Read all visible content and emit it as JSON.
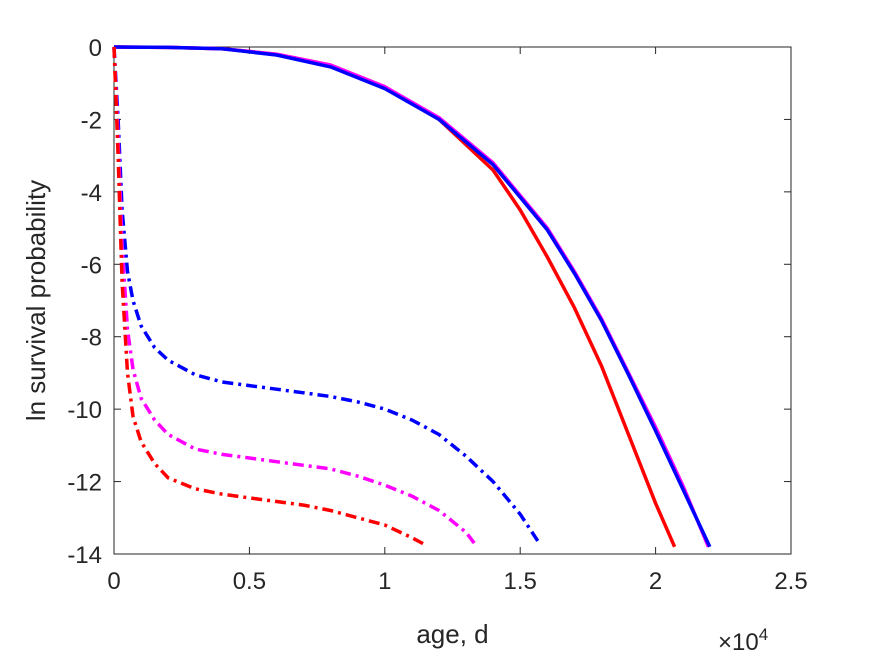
{
  "chart_data": {
    "type": "line",
    "title": "",
    "xlabel": "age, d",
    "ylabel": "ln survival probability",
    "x_exponent_base": "×10",
    "x_exponent_power": "4",
    "xlim": [
      0,
      25000
    ],
    "ylim": [
      -14,
      0
    ],
    "x_ticks": [
      0,
      5000,
      10000,
      15000,
      20000,
      25000
    ],
    "x_tick_labels": [
      "0",
      "0.5",
      "1",
      "1.5",
      "2",
      "2.5"
    ],
    "y_ticks": [
      0,
      -2,
      -4,
      -6,
      -8,
      -10,
      -12,
      -14
    ],
    "y_tick_labels": [
      "0",
      "-2",
      "-4",
      "-6",
      "-8",
      "-10",
      "-12",
      "-14"
    ],
    "grid": false,
    "series": [
      {
        "style": "solid",
        "color": "#ff0000",
        "x": [
          0,
          2000,
          4000,
          6000,
          8000,
          10000,
          12000,
          14000,
          15000,
          16000,
          17000,
          18000,
          19000,
          20000,
          20700
        ],
        "y": [
          0,
          -0.01,
          -0.05,
          -0.2,
          -0.5,
          -1.1,
          -2.0,
          -3.4,
          -4.5,
          -5.8,
          -7.2,
          -8.8,
          -10.7,
          -12.6,
          -13.8
        ]
      },
      {
        "style": "solid",
        "color": "#ff00ff",
        "x": [
          0,
          2000,
          4000,
          6000,
          8000,
          10000,
          12000,
          14000,
          15000,
          16000,
          17000,
          18000,
          19000,
          20000,
          21000,
          21950
        ],
        "y": [
          0,
          -0.01,
          -0.05,
          -0.2,
          -0.5,
          -1.1,
          -1.95,
          -3.2,
          -4.1,
          -5.0,
          -6.2,
          -7.5,
          -9.0,
          -10.5,
          -12.1,
          -13.8
        ]
      },
      {
        "style": "solid",
        "color": "#0000ff",
        "x": [
          0,
          2000,
          4000,
          6000,
          8000,
          10000,
          12000,
          14000,
          15000,
          16000,
          17000,
          18000,
          19000,
          20000,
          21000,
          22000
        ],
        "y": [
          0,
          -0.01,
          -0.05,
          -0.22,
          -0.55,
          -1.15,
          -2.0,
          -3.25,
          -4.15,
          -5.05,
          -6.25,
          -7.55,
          -9.05,
          -10.6,
          -12.2,
          -13.8
        ]
      },
      {
        "style": "dashdot",
        "color": "#0000ff",
        "x": [
          0,
          150,
          300,
          500,
          700,
          1000,
          1500,
          2000,
          3000,
          4000,
          5000,
          6000,
          7000,
          8000,
          9000,
          10000,
          11000,
          12000,
          13000,
          14000,
          15000,
          15700
        ],
        "y": [
          0,
          -2.0,
          -4.5,
          -6.2,
          -7.0,
          -7.7,
          -8.3,
          -8.65,
          -9.05,
          -9.25,
          -9.35,
          -9.45,
          -9.55,
          -9.65,
          -9.8,
          -10.0,
          -10.3,
          -10.7,
          -11.3,
          -12.0,
          -12.9,
          -13.7
        ]
      },
      {
        "style": "dashdot",
        "color": "#ff00ff",
        "x": [
          0,
          150,
          300,
          500,
          700,
          1000,
          1500,
          2000,
          3000,
          4000,
          5000,
          6000,
          7000,
          8000,
          9000,
          10000,
          11000,
          12000,
          13000,
          13300
        ],
        "y": [
          0,
          -2.5,
          -5.5,
          -7.8,
          -8.9,
          -9.7,
          -10.3,
          -10.7,
          -11.1,
          -11.25,
          -11.35,
          -11.45,
          -11.55,
          -11.65,
          -11.85,
          -12.1,
          -12.4,
          -12.8,
          -13.4,
          -13.7
        ]
      },
      {
        "style": "dashdot",
        "color": "#ff0000",
        "x": [
          0,
          150,
          300,
          500,
          700,
          1000,
          1500,
          2000,
          3000,
          4000,
          5000,
          6000,
          7000,
          8000,
          9000,
          10000,
          11000,
          11500
        ],
        "y": [
          0,
          -3.0,
          -6.5,
          -9.0,
          -10.2,
          -10.9,
          -11.5,
          -11.9,
          -12.2,
          -12.35,
          -12.45,
          -12.55,
          -12.65,
          -12.8,
          -13.0,
          -13.2,
          -13.55,
          -13.75
        ]
      }
    ]
  }
}
